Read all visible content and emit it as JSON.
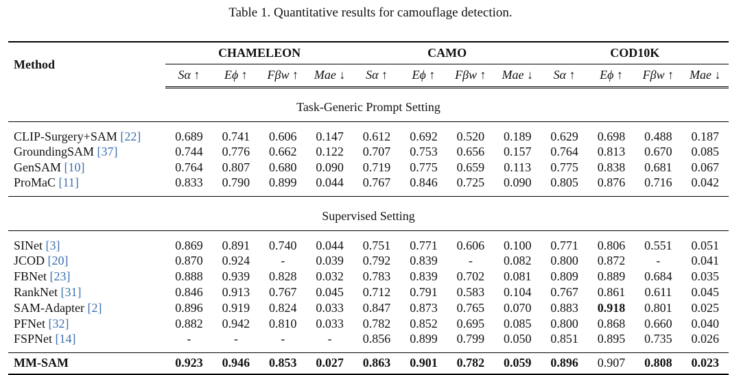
{
  "caption": "Table 1. Quantitative results for camouflage detection.",
  "header": {
    "method_label": "Method",
    "groups": [
      "CHAMELEON",
      "CAMO",
      "COD10K"
    ],
    "metrics": [
      "Sα ↑",
      "Eϕ ↑",
      "Fβw ↑",
      "Mae ↓",
      "Sα ↑",
      "Eϕ ↑",
      "Fβw ↑",
      "Mae ↓",
      "Sα ↑",
      "Eϕ ↑",
      "Fβw ↑",
      "Mae ↓"
    ]
  },
  "sections": [
    {
      "title": "Task-Generic Prompt Setting",
      "rows": [
        {
          "name": "CLIP-Surgery+SAM",
          "ref": "[22]",
          "values": [
            "0.689",
            "0.741",
            "0.606",
            "0.147",
            "0.612",
            "0.692",
            "0.520",
            "0.189",
            "0.629",
            "0.698",
            "0.488",
            "0.187"
          ]
        },
        {
          "name": "GroundingSAM",
          "ref": "[37]",
          "values": [
            "0.744",
            "0.776",
            "0.662",
            "0.122",
            "0.707",
            "0.753",
            "0.656",
            "0.157",
            "0.764",
            "0.813",
            "0.670",
            "0.085"
          ]
        },
        {
          "name": "GenSAM",
          "ref": "[10]",
          "values": [
            "0.764",
            "0.807",
            "0.680",
            "0.090",
            "0.719",
            "0.775",
            "0.659",
            "0.113",
            "0.775",
            "0.838",
            "0.681",
            "0.067"
          ]
        },
        {
          "name": "ProMaC",
          "ref": "[11]",
          "values": [
            "0.833",
            "0.790",
            "0.899",
            "0.044",
            "0.767",
            "0.846",
            "0.725",
            "0.090",
            "0.805",
            "0.876",
            "0.716",
            "0.042"
          ]
        }
      ]
    },
    {
      "title": "Supervised Setting",
      "rows": [
        {
          "name": "SINet",
          "ref": "[3]",
          "values": [
            "0.869",
            "0.891",
            "0.740",
            "0.044",
            "0.751",
            "0.771",
            "0.606",
            "0.100",
            "0.771",
            "0.806",
            "0.551",
            "0.051"
          ]
        },
        {
          "name": "JCOD",
          "ref": "[20]",
          "values": [
            "0.870",
            "0.924",
            "-",
            "0.039",
            "0.792",
            "0.839",
            "-",
            "0.082",
            "0.800",
            "0.872",
            "-",
            "0.041"
          ]
        },
        {
          "name": "FBNet",
          "ref": "[23]",
          "values": [
            "0.888",
            "0.939",
            "0.828",
            "0.032",
            "0.783",
            "0.839",
            "0.702",
            "0.081",
            "0.809",
            "0.889",
            "0.684",
            "0.035"
          ]
        },
        {
          "name": "RankNet",
          "ref": "[31]",
          "values": [
            "0.846",
            "0.913",
            "0.767",
            "0.045",
            "0.712",
            "0.791",
            "0.583",
            "0.104",
            "0.767",
            "0.861",
            "0.611",
            "0.045"
          ]
        },
        {
          "name": "SAM-Adapter",
          "ref": "[2]",
          "values": [
            "0.896",
            "0.919",
            "0.824",
            "0.033",
            "0.847",
            "0.873",
            "0.765",
            "0.070",
            "0.883",
            "0.918",
            "0.801",
            "0.025"
          ]
        },
        {
          "name": "PFNet",
          "ref": "[32]",
          "values": [
            "0.882",
            "0.942",
            "0.810",
            "0.033",
            "0.782",
            "0.852",
            "0.695",
            "0.085",
            "0.800",
            "0.868",
            "0.660",
            "0.040"
          ]
        },
        {
          "name": "FSPNet",
          "ref": "[14]",
          "values": [
            "-",
            "-",
            "-",
            "-",
            "0.856",
            "0.899",
            "0.799",
            "0.050",
            "0.851",
            "0.895",
            "0.735",
            "0.026"
          ]
        }
      ]
    }
  ],
  "final_row": {
    "name": "MM-SAM",
    "values": [
      "0.923",
      "0.946",
      "0.853",
      "0.027",
      "0.863",
      "0.901",
      "0.782",
      "0.059",
      "0.896",
      "0.907",
      "0.808",
      "0.023"
    ]
  }
}
